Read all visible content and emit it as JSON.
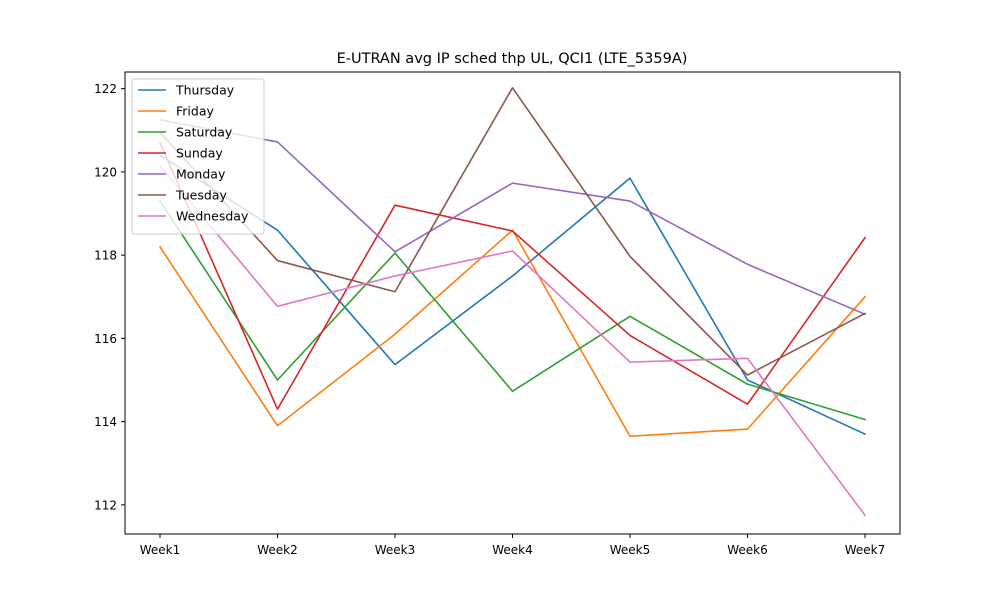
{
  "chart_data": {
    "type": "line",
    "title": "E-UTRAN avg IP sched thp UL, QCI1 (LTE_5359A)",
    "xlabel": "",
    "ylabel": "",
    "categories": [
      "Week1",
      "Week2",
      "Week3",
      "Week4",
      "Week5",
      "Week6",
      "Week7"
    ],
    "ylim": [
      111.3,
      122.4
    ],
    "yticks": [
      112,
      114,
      116,
      118,
      120,
      122
    ],
    "grid": false,
    "legend_position": "top-left",
    "series": [
      {
        "name": "Thursday",
        "color": "#1f77b4",
        "values": [
          120.4,
          118.6,
          115.37,
          117.5,
          119.85,
          115.0,
          113.7
        ]
      },
      {
        "name": "Friday",
        "color": "#ff7f0e",
        "values": [
          118.2,
          113.9,
          116.1,
          118.6,
          113.65,
          113.82,
          117.0
        ]
      },
      {
        "name": "Saturday",
        "color": "#2ca02c",
        "values": [
          119.3,
          115.0,
          118.05,
          114.73,
          116.53,
          114.9,
          114.05
        ]
      },
      {
        "name": "Sunday",
        "color": "#d62728",
        "values": [
          120.7,
          114.3,
          119.2,
          118.58,
          116.07,
          114.42,
          118.42
        ]
      },
      {
        "name": "Monday",
        "color": "#9467bd",
        "values": [
          121.25,
          120.72,
          118.08,
          119.73,
          119.3,
          117.78,
          116.58
        ]
      },
      {
        "name": "Tuesday",
        "color": "#8c564b",
        "values": [
          120.95,
          117.87,
          117.12,
          122.02,
          117.97,
          115.12,
          116.6
        ]
      },
      {
        "name": "Wednesday",
        "color": "#e377c2",
        "values": [
          120.15,
          116.77,
          117.5,
          118.1,
          115.43,
          115.52,
          111.75
        ]
      }
    ]
  }
}
